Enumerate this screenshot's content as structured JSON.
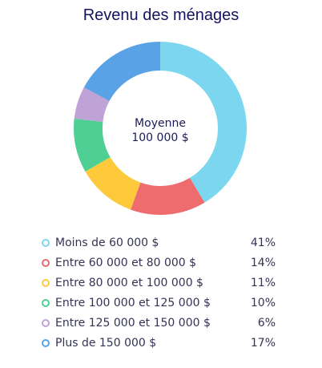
{
  "title": "Revenu des ménages",
  "center": {
    "line1": "Moyenne",
    "line2": "100 000 $"
  },
  "chart_data": {
    "type": "pie",
    "variant": "donut",
    "title": "Revenu des ménages",
    "categories": [
      "Moins de 60 000 $",
      "Entre 60 000 et 80 000 $",
      "Entre 80 000 et 100 000 $",
      "Entre 100 000 et 125 000 $",
      "Entre 125 000 et 150 000 $",
      "Plus de 150 000 $"
    ],
    "values": [
      41,
      14,
      11,
      10,
      6,
      17
    ],
    "value_labels": [
      "41%",
      "14%",
      "11%",
      "10%",
      "6%",
      "17%"
    ],
    "colors": [
      "#7dd6ef",
      "#ee6b6e",
      "#ffc93c",
      "#4fcf94",
      "#c0a3d6",
      "#5aa2e6"
    ],
    "legend_position": "bottom"
  }
}
